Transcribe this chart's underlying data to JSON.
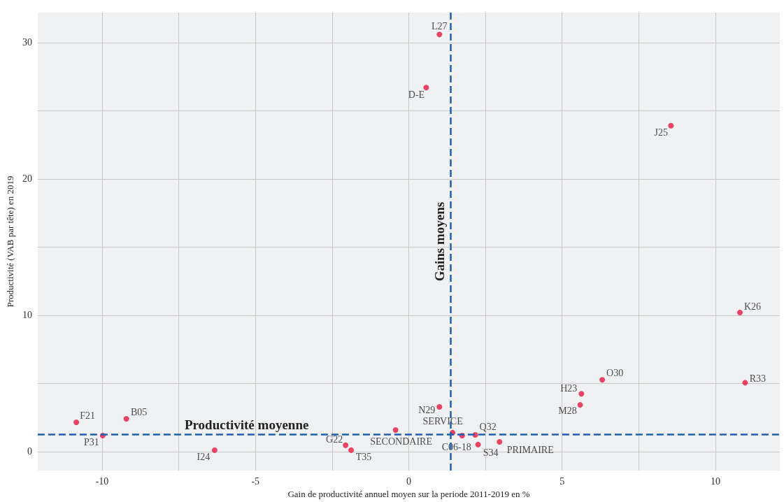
{
  "chart_data": {
    "type": "scatter",
    "xlabel": "Gain de productivité annuel moyen sur la periode 2011-2019 en %",
    "ylabel": "Productivité (VAB par tête) en 2019",
    "x": [
      1.0,
      0.57,
      8.55,
      10.8,
      10.97,
      6.31,
      5.63,
      5.59,
      1.0,
      -10.84,
      -9.21,
      -9.98,
      -6.33,
      -2.06,
      -1.88,
      -0.43,
      1.43,
      1.74,
      2.17,
      2.26,
      2.96
    ],
    "values": [
      30.6,
      26.7,
      23.9,
      10.2,
      5.05,
      5.26,
      4.23,
      3.42,
      3.27,
      2.14,
      2.4,
      1.17,
      0.1,
      0.46,
      0.1,
      1.58,
      1.38,
      1.17,
      1.22,
      0.51,
      0.71
    ],
    "color": "#e8173f",
    "marker": "circle",
    "annotations": [
      {
        "text": "L27",
        "x": 1.0,
        "y": 30.6
      },
      {
        "text": "D-E",
        "x": 0.57,
        "y": 26.7
      },
      {
        "text": "J25",
        "x": 8.55,
        "y": 23.9
      },
      {
        "text": "K26",
        "x": 10.8,
        "y": 10.2
      },
      {
        "text": "R33",
        "x": 10.97,
        "y": 5.05
      },
      {
        "text": "O30",
        "x": 6.31,
        "y": 5.26
      },
      {
        "text": "H23",
        "x": 5.63,
        "y": 4.23
      },
      {
        "text": "M28",
        "x": 5.59,
        "y": 3.42
      },
      {
        "text": "N29",
        "x": 1.0,
        "y": 3.27
      },
      {
        "text": "F21",
        "x": -10.84,
        "y": 2.14
      },
      {
        "text": "B05",
        "x": -9.21,
        "y": 2.4
      },
      {
        "text": "P31",
        "x": -9.98,
        "y": 1.17
      },
      {
        "text": "I24",
        "x": -6.33,
        "y": 0.1
      },
      {
        "text": "G22",
        "x": -2.06,
        "y": 0.46
      },
      {
        "text": "T35",
        "x": -1.88,
        "y": 0.1
      },
      {
        "text": "SECONDAIRE",
        "x": -0.43,
        "y": 1.58
      },
      {
        "text": "SERVICE",
        "x": 1.43,
        "y": 1.38
      },
      {
        "text": "C06-18",
        "x": 1.74,
        "y": 1.17
      },
      {
        "text": "Q32",
        "x": 2.17,
        "y": 1.22
      },
      {
        "text": "S34",
        "x": 2.26,
        "y": 0.51
      },
      {
        "text": "PRIMAIRE",
        "x": 2.96,
        "y": 0.71
      }
    ],
    "ref_lines": [
      {
        "axis": "y",
        "value": 1.28,
        "label": "Productivité moyenne",
        "color": "#1f5fae",
        "line_style": "dashed"
      },
      {
        "axis": "x",
        "value": 1.36,
        "label": "Gains moyens",
        "color": "#1f5fae",
        "line_style": "dashed"
      }
    ],
    "xlim": [
      -12.1,
      12.1
    ],
    "ylim": [
      -1.4,
      32.2
    ],
    "xticks": [
      {
        "value": -10,
        "label": "-10"
      },
      {
        "value": -7.5,
        "label": null
      },
      {
        "value": -5,
        "label": "-5"
      },
      {
        "value": -2.5,
        "label": null
      },
      0,
      {
        "value": 2.5,
        "label": null
      },
      5,
      {
        "value": 7.5,
        "label": null
      },
      10
    ],
    "yticks": [
      0,
      {
        "value": 5,
        "label": null
      },
      10,
      {
        "value": 15,
        "label": null
      },
      20,
      {
        "value": 25,
        "label": null
      },
      30
    ],
    "grid": true
  }
}
